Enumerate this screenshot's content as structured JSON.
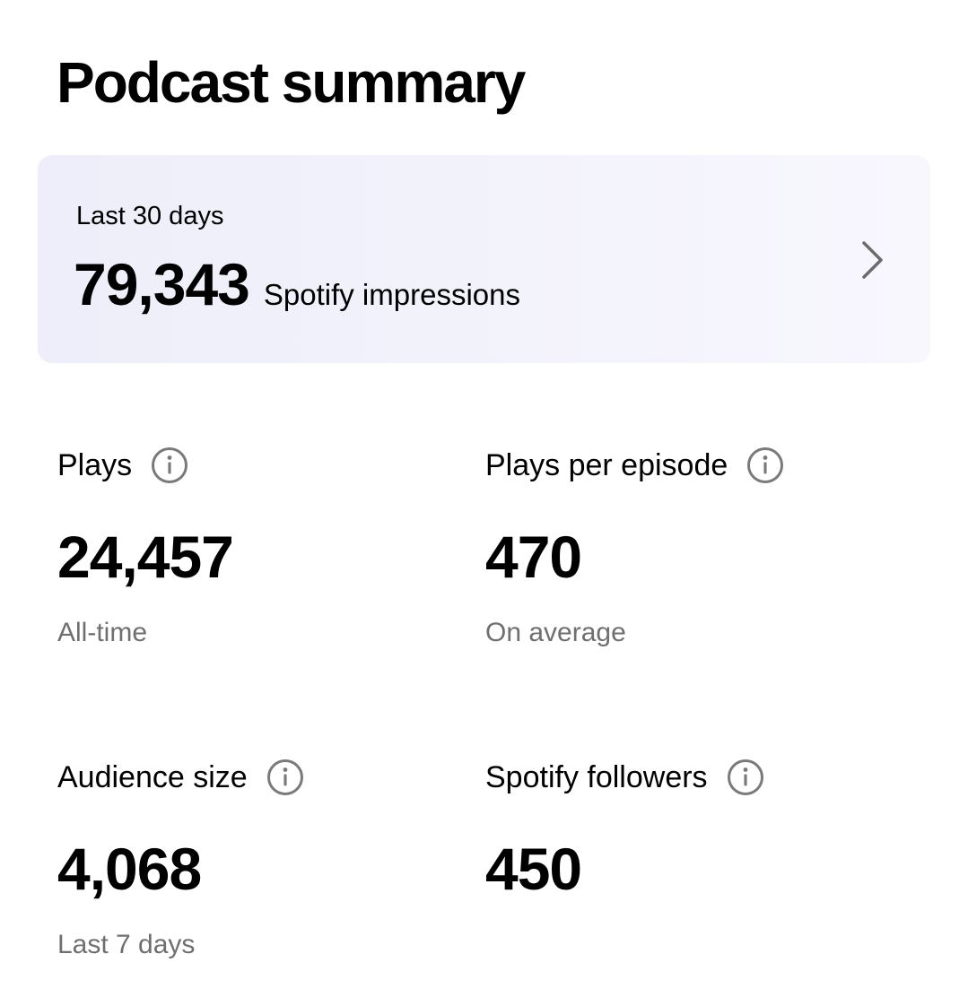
{
  "page": {
    "title": "Podcast summary"
  },
  "impressions_card": {
    "period": "Last 30 days",
    "value": "79,343",
    "metric": "Spotify impressions",
    "chevron_icon": "chevron-right-icon"
  },
  "stats": [
    {
      "label": "Plays",
      "value": "24,457",
      "sub": "All-time",
      "icon": "info-icon"
    },
    {
      "label": "Plays per episode",
      "value": "470",
      "sub": "On average",
      "icon": "info-icon"
    },
    {
      "label": "Audience size",
      "value": "4,068",
      "sub": "Last 7 days",
      "icon": "info-icon"
    },
    {
      "label": "Spotify followers",
      "value": "450",
      "sub": "",
      "icon": "info-icon"
    }
  ],
  "colors": {
    "text": "#000000",
    "muted_text": "#6f6f6f",
    "card_background": "#f2f2fb",
    "icon": "#7a7a7a"
  }
}
